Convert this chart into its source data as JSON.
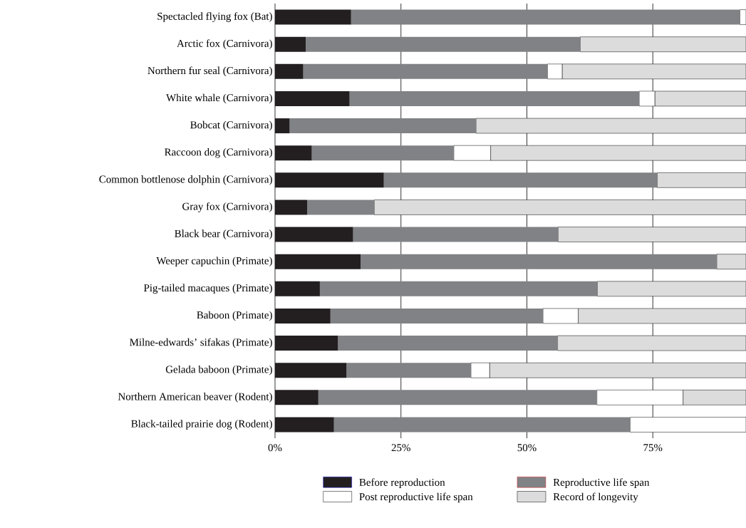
{
  "chart_data": {
    "type": "bar",
    "orientation": "horizontal",
    "stacked": true,
    "categories": [
      "Spectacled flying fox (Bat)",
      "Arctic fox (Carnivora)",
      "Northern fur seal (Carnivora)",
      "White whale (Carnivora)",
      "Bobcat (Carnivora)",
      "Raccoon dog (Carnivora)",
      "Common bottlenose dolphin (Carnivora)",
      "Gray fox (Carnivora)",
      "Black bear (Carnivora)",
      "Weeper capuchin (Primate)",
      "Pig-tailed macaques (Primate)",
      "Baboon (Primate)",
      "Milne-edwards’ sifakas (Primate)",
      "Gelada baboon (Primate)",
      "Northern American beaver (Rodent)",
      "Black-tailed prairie dog (Rodent)"
    ],
    "series": [
      {
        "name": "Before reproduction",
        "color": "#231f20",
        "values": [
          15.1,
          6.1,
          5.6,
          14.8,
          2.9,
          7.3,
          21.6,
          6.4,
          15.5,
          17.0,
          8.9,
          11.0,
          12.5,
          14.2,
          8.6,
          11.7
        ]
      },
      {
        "name": "Reproductive life span",
        "color": "#808285",
        "values": [
          77.2,
          54.5,
          48.5,
          57.5,
          37.0,
          28.2,
          54.3,
          13.3,
          40.7,
          70.7,
          55.1,
          42.2,
          43.6,
          24.7,
          55.3,
          58.8
        ]
      },
      {
        "name": "Post reproductive life span",
        "color": "#ffffff",
        "values": [
          1.2,
          0,
          2.9,
          3.1,
          0,
          7.3,
          0,
          0,
          0,
          0,
          0,
          7.0,
          0,
          3.7,
          17.1,
          23.0
        ]
      },
      {
        "name": "Record of longevity",
        "color": "#dcdcdc",
        "values": [
          0,
          32.9,
          36.5,
          18.1,
          53.6,
          50.7,
          17.6,
          73.8,
          37.3,
          5.8,
          29.5,
          33.3,
          37.4,
          50.9,
          12.5,
          0
        ]
      }
    ],
    "xlim": [
      0,
      93.5
    ],
    "xticks": [
      {
        "value": 0,
        "label": "0%"
      },
      {
        "value": 25,
        "label": "25%"
      },
      {
        "value": 50,
        "label": "50%"
      },
      {
        "value": 75,
        "label": "75%"
      }
    ],
    "grid": "x",
    "legend": "bottom"
  }
}
